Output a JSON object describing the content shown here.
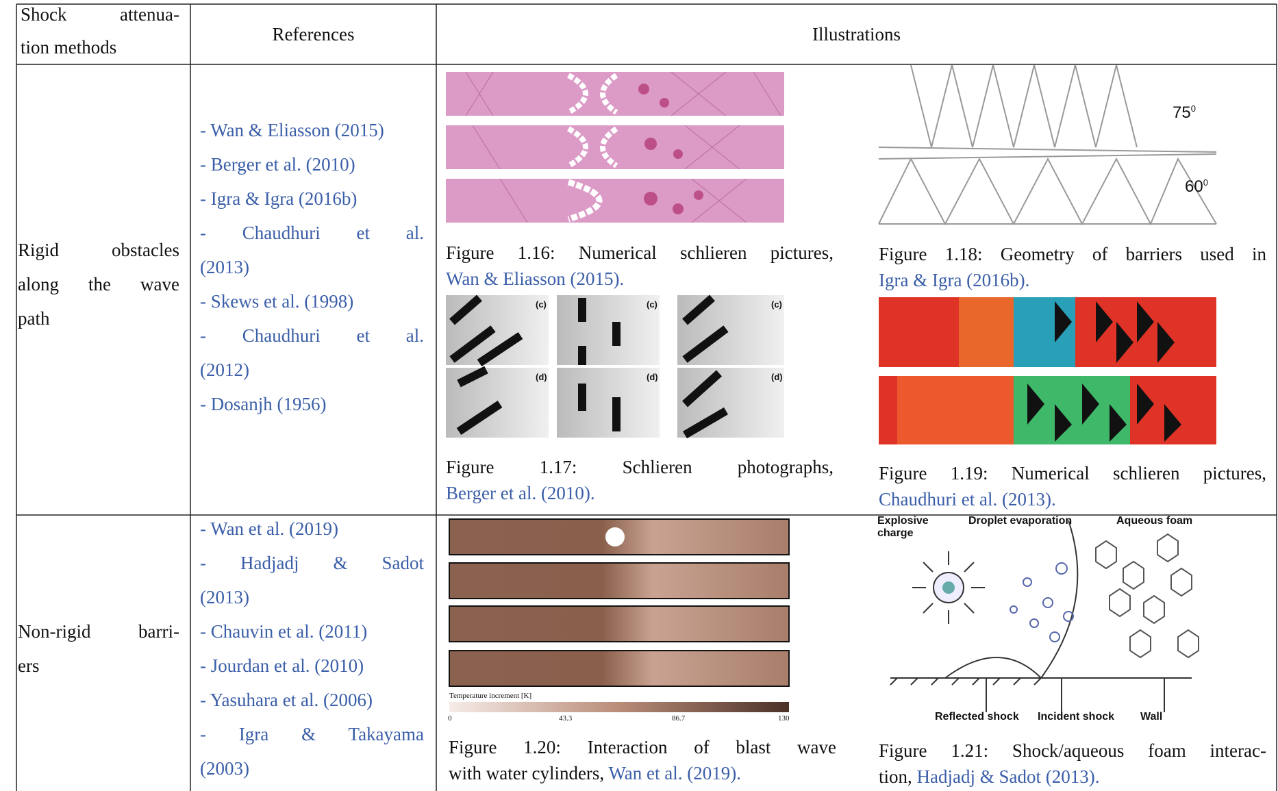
{
  "table": {
    "header": [
      [
        "Shock attenua-",
        "tion methods"
      ],
      "References",
      "Illustrations"
    ],
    "rows": [
      {
        "method": [
          "Rigid obstacles",
          "along the wave",
          "path"
        ],
        "references": [
          [
            "- Wan & Eliasson (2015)"
          ],
          [
            "- Berger et al. (2010)"
          ],
          [
            "- Igra & Igra (2016b)"
          ],
          [
            "- Chaudhuri et al.",
            "(2013)"
          ],
          [
            "- Skews et al. (1998)"
          ],
          [
            "- Chaudhuri et al.",
            "(2012)"
          ],
          [
            "- Dosanjh (1956)"
          ]
        ],
        "figures": [
          {
            "caption": [
              {
                "text": "Figure 1.16: Numerical schlieren pictures,"
              },
              {
                "link": "Wan & Eliasson (2015)."
              }
            ]
          },
          {
            "caption": [
              {
                "text": "Figure 1.17: Schlieren photographs,"
              },
              {
                "link": "Berger et al. (2010)."
              }
            ],
            "labels": [
              "(c)",
              "(c)",
              "(c)",
              "(d)",
              "(d)",
              "(d)"
            ]
          },
          {
            "caption": [
              {
                "text": "Figure 1.18: Geometry of barriers used in"
              },
              {
                "link": "Igra & Igra (2016b)."
              }
            ],
            "labels": [
              {
                "text": "75",
                "sup": "0"
              },
              {
                "text": "60",
                "sup": "0"
              }
            ]
          },
          {
            "caption": [
              {
                "text": "Figure 1.19: Numerical schlieren pictures,"
              },
              {
                "link": "Chaudhuri et al. (2013)."
              }
            ]
          }
        ]
      },
      {
        "method": [
          "Non-rigid barri-",
          "ers"
        ],
        "references": [
          [
            "- Wan et al. (2019)"
          ],
          [
            "- Hadjadj & Sadot",
            "(2013)"
          ],
          [
            "- Chauvin et al. (2011)"
          ],
          [
            "- Jourdan et al. (2010)"
          ],
          [
            "- Yasuhara et al. (2006)"
          ],
          [
            "- Igra & Takayama",
            "(2003)"
          ]
        ],
        "figures": [
          {
            "caption": [
              {
                "text": "Figure 1.20: Interaction of blast wave"
              },
              {
                "text": "with water cylinders,",
                "link": "Wan et al. (2019)."
              }
            ],
            "colorbar_title": "Temperature increment [K]",
            "colorbar_ticks": [
              "0",
              "43.3",
              "86.7",
              "130"
            ]
          },
          {
            "caption": [
              {
                "text": "Figure 1.21: Shock/aqueous foam interac-"
              },
              {
                "text": "tion,",
                "link": "Hadjadj & Sadot (2013)."
              }
            ],
            "labels": [
              "Explosive charge",
              "Droplet evaporation",
              "Aqueous foam",
              "Reflected shock",
              "Incident shock",
              "Wall"
            ]
          }
        ]
      }
    ]
  }
}
